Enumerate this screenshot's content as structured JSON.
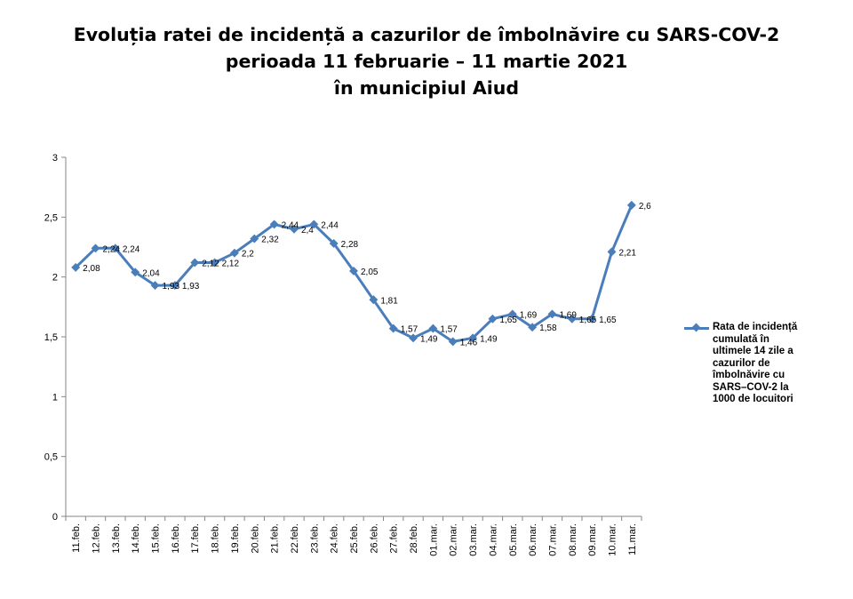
{
  "title_lines": [
    "Evoluția ratei de incidență a cazurilor de îmbolnăvire cu SARS-COV-2",
    "perioada 11 februarie – 11 martie 2021",
    "în municipiul Aiud"
  ],
  "colors": {
    "series": "#4a7ebb",
    "axis": "#868686"
  },
  "chart_data": {
    "type": "line",
    "title": "Evoluția ratei de incidență a cazurilor de îmbolnăvire cu SARS-COV-2 perioada 11 februarie – 11 martie 2021 în municipiul Aiud",
    "categories": [
      "11.feb.",
      "12.feb.",
      "13.feb.",
      "14.feb.",
      "15.feb.",
      "16.feb.",
      "17.feb.",
      "18.feb.",
      "19.feb.",
      "20.feb.",
      "21.feb.",
      "22.feb.",
      "23.feb.",
      "24.feb.",
      "25.feb.",
      "26.feb.",
      "27.feb.",
      "28.feb.",
      "01.mar.",
      "02.mar.",
      "03.mar.",
      "04.mar.",
      "05.mar.",
      "06.mar.",
      "07.mar.",
      "08.mar.",
      "09.mar.",
      "10.mar.",
      "11.mar."
    ],
    "series": [
      {
        "name": "Rata de incidență cumulată în ultimele 14 zile a cazurilor de îmbolnăvire cu SARS–COV-2 la 1000 de locuitori",
        "values": [
          2.08,
          2.24,
          2.24,
          2.04,
          1.93,
          1.93,
          2.12,
          2.12,
          2.2,
          2.32,
          2.44,
          2.4,
          2.44,
          2.28,
          2.05,
          1.81,
          1.57,
          1.49,
          1.57,
          1.46,
          1.49,
          1.65,
          1.69,
          1.58,
          1.69,
          1.65,
          1.65,
          2.21,
          2.6
        ],
        "labels": [
          "2,08",
          "2,24",
          "2,24",
          "2,04",
          "1,93",
          "1,93",
          "2,12",
          "2,12",
          "2,2",
          "2,32",
          "2,44",
          "2,4",
          "2,44",
          "2,28",
          "2,05",
          "1,81",
          "1,57",
          "1,49",
          "1,57",
          "1,46",
          "1,49",
          "1,65",
          "1,69",
          "1,58",
          "1,69",
          "1,65",
          "1,65",
          "2,21",
          "2,6"
        ]
      }
    ],
    "ylim": [
      0,
      3
    ],
    "yticks": [
      0,
      0.5,
      1,
      1.5,
      2,
      2.5,
      3
    ],
    "ytick_labels": [
      "0",
      "0,5",
      "1",
      "1,5",
      "2",
      "2,5",
      "3"
    ],
    "xlabel": "",
    "ylabel": "",
    "grid": false,
    "legend_position": "right"
  },
  "legend": {
    "label": "Rata de incidență cumulată în ultimele 14 zile a cazurilor de îmbolnăvire cu SARS–COV-2 la 1000 de locuitori"
  }
}
